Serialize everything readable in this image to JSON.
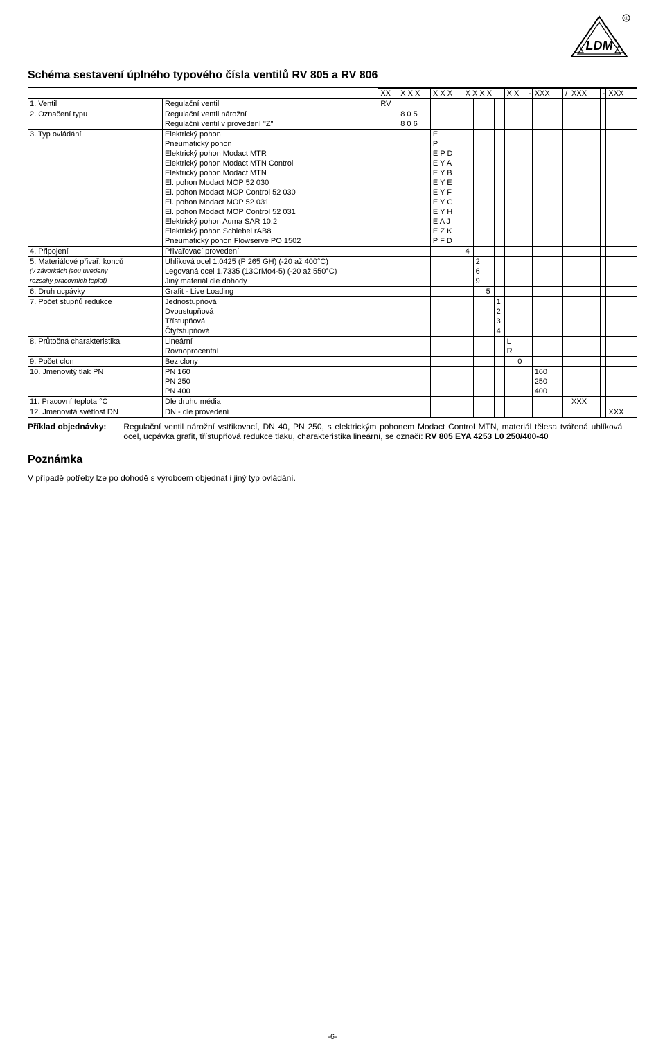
{
  "logo": {
    "text": "LDM",
    "registered": "®"
  },
  "title": "Schéma sestavení úplného typového čísla ventilů RV 805 a RV 806",
  "header": {
    "xx": "XX",
    "xxx1": "X X X",
    "xxx2": "X X X",
    "xxxx": "X X X X",
    "xx2": "X X",
    "dash1": "-",
    "pn": "XXX",
    "slash": "/",
    "temp": "XXX",
    "dash2": "-",
    "dn": "XXX"
  },
  "rows": [
    {
      "label": "1.  Ventil",
      "desc": "Regulační ventil",
      "xx": "RV",
      "thinTop": true
    },
    {
      "label": "2.  Označení typu",
      "desc": "Regulační ventil nárožní",
      "xxx1": "8 0 5",
      "topBorder": true
    },
    {
      "label": "",
      "desc": "Regulační ventil v provedení \"Z\"",
      "xxx1": "8 0 6"
    },
    {
      "label": "3.  Typ ovládání",
      "desc": "Elektrický pohon",
      "xxx2": "E",
      "topBorder": true
    },
    {
      "label": "",
      "desc": "Pneumatický pohon",
      "xxx2": "P"
    },
    {
      "label": "",
      "desc": "Elektrický pohon Modact MTR",
      "xxx2": "E P D"
    },
    {
      "label": "",
      "desc": "Elektrický pohon Modact MTN Control",
      "xxx2": "E Y A"
    },
    {
      "label": "",
      "desc": "Elektrický pohon Modact MTN",
      "xxx2": "E Y B"
    },
    {
      "label": "",
      "desc": "El. pohon Modact MOP 52 030",
      "xxx2": "E Y E"
    },
    {
      "label": "",
      "desc": "El. pohon Modact MOP Control 52 030",
      "xxx2": "E Y F"
    },
    {
      "label": "",
      "desc": "El. pohon Modact MOP 52 031",
      "xxx2": "E Y G"
    },
    {
      "label": "",
      "desc": "El. pohon Modact MOP Control 52 031",
      "xxx2": "E Y H"
    },
    {
      "label": "",
      "desc": "Elektrický pohon Auma SAR 10.2",
      "xxx2": "E A J"
    },
    {
      "label": "",
      "desc": "Elektrický pohon Schiebel rAB8",
      "xxx2": "E Z K"
    },
    {
      "label": "",
      "desc": "Pneumatický pohon Flowserve PO 1502",
      "xxx2": "P F D"
    },
    {
      "label": "4.  Připojení",
      "desc": "Přivařovací provedení",
      "x4a": "4",
      "topBorder": true
    },
    {
      "label": "5.  Materiálové přivař. konců",
      "desc": "Uhlíková ocel 1.0425 (P 265 GH) (-20 až 400°C)",
      "x4b": "2",
      "topBorder": true
    },
    {
      "label": "(v závorkách jsou uvedeny",
      "desc": "Legovaná ocel 1.7335 (13CrMo4-5) (-20 až 550°C)",
      "x4b": "6",
      "italicLabel": true
    },
    {
      "label": "rozsahy pracovních teplot)",
      "desc": "Jiný materiál dle dohody",
      "x4b": "9",
      "italicLabel": true
    },
    {
      "label": "6.  Druh ucpávky",
      "desc": "Grafit - Live Loading",
      "x4c": "5",
      "topBorder": true
    },
    {
      "label": "7.  Počet stupňů redukce",
      "desc": "Jednostupňová",
      "x4d": "1",
      "topBorder": true
    },
    {
      "label": "",
      "desc": "Dvoustupňová",
      "x4d": "2"
    },
    {
      "label": "",
      "desc": "Třístupňová",
      "x4d": "3"
    },
    {
      "label": "",
      "desc": "Čtyřstupňová",
      "x4d": "4"
    },
    {
      "label": "8.  Průtočná charakteristika",
      "desc": "Lineární",
      "xx2a": "L",
      "topBorder": true
    },
    {
      "label": "",
      "desc": "Rovnoprocentní",
      "xx2a": "R"
    },
    {
      "label": "9.  Počet clon",
      "desc": "Bez clony",
      "xx2b": "0",
      "topBorder": true
    },
    {
      "label": "10. Jmenovitý tlak PN",
      "desc": "PN 160",
      "pn": "160",
      "topBorder": true
    },
    {
      "label": "",
      "desc": "PN 250",
      "pn": "250"
    },
    {
      "label": "",
      "desc": "PN 400",
      "pn": "400"
    },
    {
      "label": "11. Pracovní teplota °C",
      "desc": "Dle druhu média",
      "temp": "XXX",
      "topBorder": true
    },
    {
      "label": "12. Jmenovitá světlost DN",
      "desc": "DN - dle provedení",
      "dn": "XXX",
      "topBorder": true,
      "bottomBorder": true
    }
  ],
  "order": {
    "label": "Příklad objednávky:",
    "text_prefix": "Regulační ventil nárožní vstřikovací, DN 40, PN 250, s elektrickým pohonem Modact Control MTN, materiál tělesa tvářená uhlíková ocel, ucpávka grafit, třístupňová redukce tlaku, charakteristika lineární, se označí: ",
    "code": "RV 805 EYA 4253 L0 250/400-40"
  },
  "note": {
    "title": "Poznámka",
    "body": "V případě potřeby lze po dohodě s výrobcem objednat i jiný typ ovládání."
  },
  "pagenum": "-6-"
}
